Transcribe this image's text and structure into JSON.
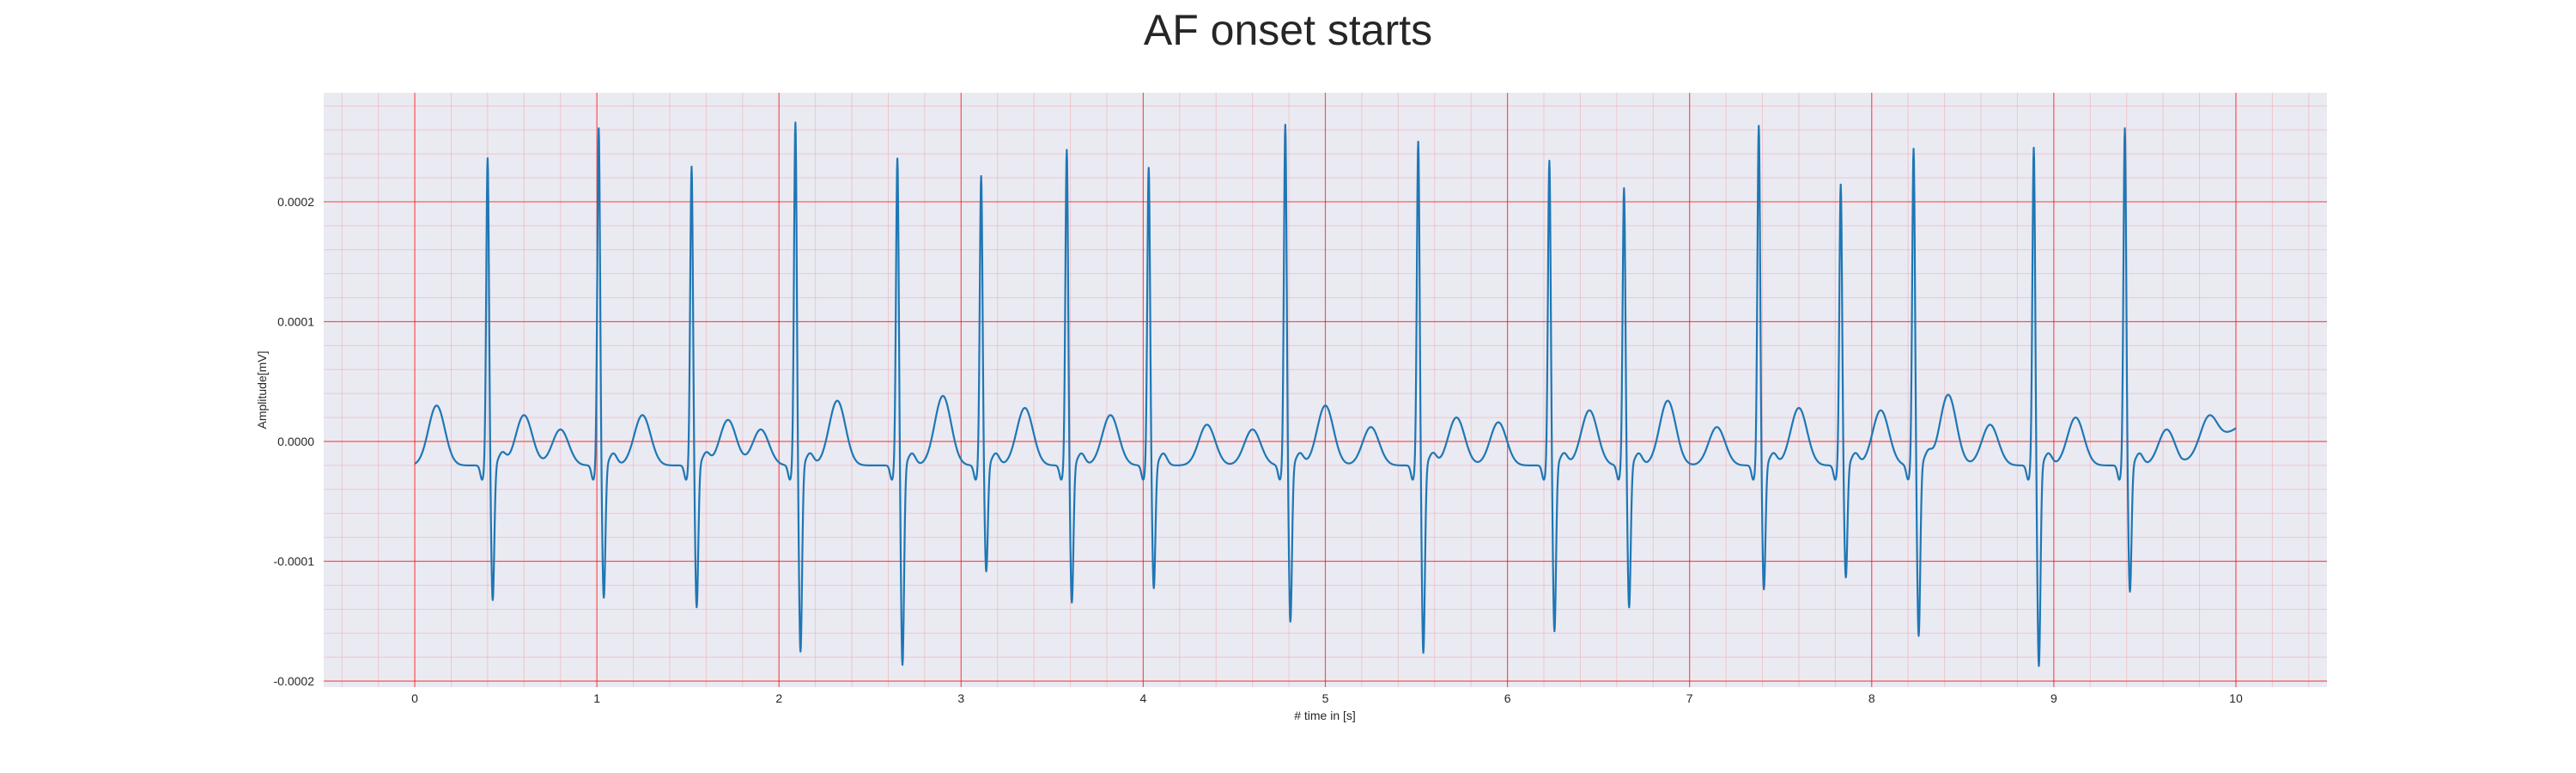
{
  "chart_data": {
    "type": "line",
    "title": "AF onset starts",
    "xlabel": "# time in [s]",
    "ylabel": "Amplitude[mV]",
    "xlim": [
      -0.5,
      10.5
    ],
    "ylim": [
      -0.000205,
      0.000291
    ],
    "x_ticks": [
      0,
      1,
      2,
      3,
      4,
      5,
      6,
      7,
      8,
      9,
      10
    ],
    "x_tick_labels": [
      "0",
      "1",
      "2",
      "3",
      "4",
      "5",
      "6",
      "7",
      "8",
      "9",
      "10"
    ],
    "y_ticks": [
      -0.0002,
      -0.0001,
      0.0,
      0.0001,
      0.0002
    ],
    "y_tick_labels": [
      "-0.0002",
      "-0.0001",
      "0.0000",
      "0.0001",
      "0.0002"
    ],
    "grid": {
      "major": true,
      "minor": true,
      "color": "#ff0000"
    },
    "background": "#eaeaf2",
    "series": [
      {
        "color": "#1f77b4",
        "x_start": 0,
        "x_end": 10,
        "baseline": -2e-05,
        "end_value": 1.1e-05,
        "beats": [
          {
            "t": 0.4,
            "peak": 0.000237,
            "trough": -0.000133
          },
          {
            "t": 1.01,
            "peak": 0.000262,
            "trough": -0.000131
          },
          {
            "t": 1.52,
            "peak": 0.00023,
            "trough": -0.000139
          },
          {
            "t": 2.09,
            "peak": 0.000267,
            "trough": -0.000176
          },
          {
            "t": 2.65,
            "peak": 0.000237,
            "trough": -0.000187
          },
          {
            "t": 3.11,
            "peak": 0.000222,
            "trough": -0.000109
          },
          {
            "t": 3.58,
            "peak": 0.000244,
            "trough": -0.000135
          },
          {
            "t": 4.03,
            "peak": 0.000229,
            "trough": -0.000123
          },
          {
            "t": 4.78,
            "peak": 0.000265,
            "trough": -0.000151
          },
          {
            "t": 5.51,
            "peak": 0.000251,
            "trough": -0.000177
          },
          {
            "t": 6.23,
            "peak": 0.000235,
            "trough": -0.000159
          },
          {
            "t": 6.64,
            "peak": 0.000212,
            "trough": -0.000139
          },
          {
            "t": 7.38,
            "peak": 0.000264,
            "trough": -0.000124
          },
          {
            "t": 7.83,
            "peak": 0.000215,
            "trough": -0.000114
          },
          {
            "t": 8.23,
            "peak": 0.000245,
            "trough": -0.000163
          },
          {
            "t": 8.89,
            "peak": 0.000246,
            "trough": -0.000188
          },
          {
            "t": 9.39,
            "peak": 0.000262,
            "trough": -0.000126
          }
        ],
        "f_waves": [
          {
            "t": 0.12,
            "amp": 3e-05
          },
          {
            "t": 0.6,
            "amp": 2.2e-05
          },
          {
            "t": 0.8,
            "amp": 1e-05
          },
          {
            "t": 1.25,
            "amp": 2.2e-05
          },
          {
            "t": 1.72,
            "amp": 1.8e-05
          },
          {
            "t": 1.9,
            "amp": 1e-05
          },
          {
            "t": 2.32,
            "amp": 3.4e-05
          },
          {
            "t": 2.9,
            "amp": 3.8e-05
          },
          {
            "t": 3.35,
            "amp": 2.8e-05
          },
          {
            "t": 3.82,
            "amp": 2.2e-05
          },
          {
            "t": 4.35,
            "amp": 1.4e-05
          },
          {
            "t": 4.6,
            "amp": 1e-05
          },
          {
            "t": 5.0,
            "amp": 3e-05
          },
          {
            "t": 5.25,
            "amp": 1.2e-05
          },
          {
            "t": 5.72,
            "amp": 2e-05
          },
          {
            "t": 5.95,
            "amp": 1.6e-05
          },
          {
            "t": 6.45,
            "amp": 2.6e-05
          },
          {
            "t": 6.88,
            "amp": 3.4e-05
          },
          {
            "t": 7.15,
            "amp": 1.2e-05
          },
          {
            "t": 7.6,
            "amp": 2.8e-05
          },
          {
            "t": 8.05,
            "amp": 2.6e-05
          },
          {
            "t": 8.42,
            "amp": 3.9e-05
          },
          {
            "t": 8.65,
            "amp": 1.4e-05
          },
          {
            "t": 9.12,
            "amp": 2e-05
          },
          {
            "t": 9.62,
            "amp": 1e-05
          },
          {
            "t": 9.85,
            "amp": 6e-06
          }
        ]
      }
    ]
  }
}
